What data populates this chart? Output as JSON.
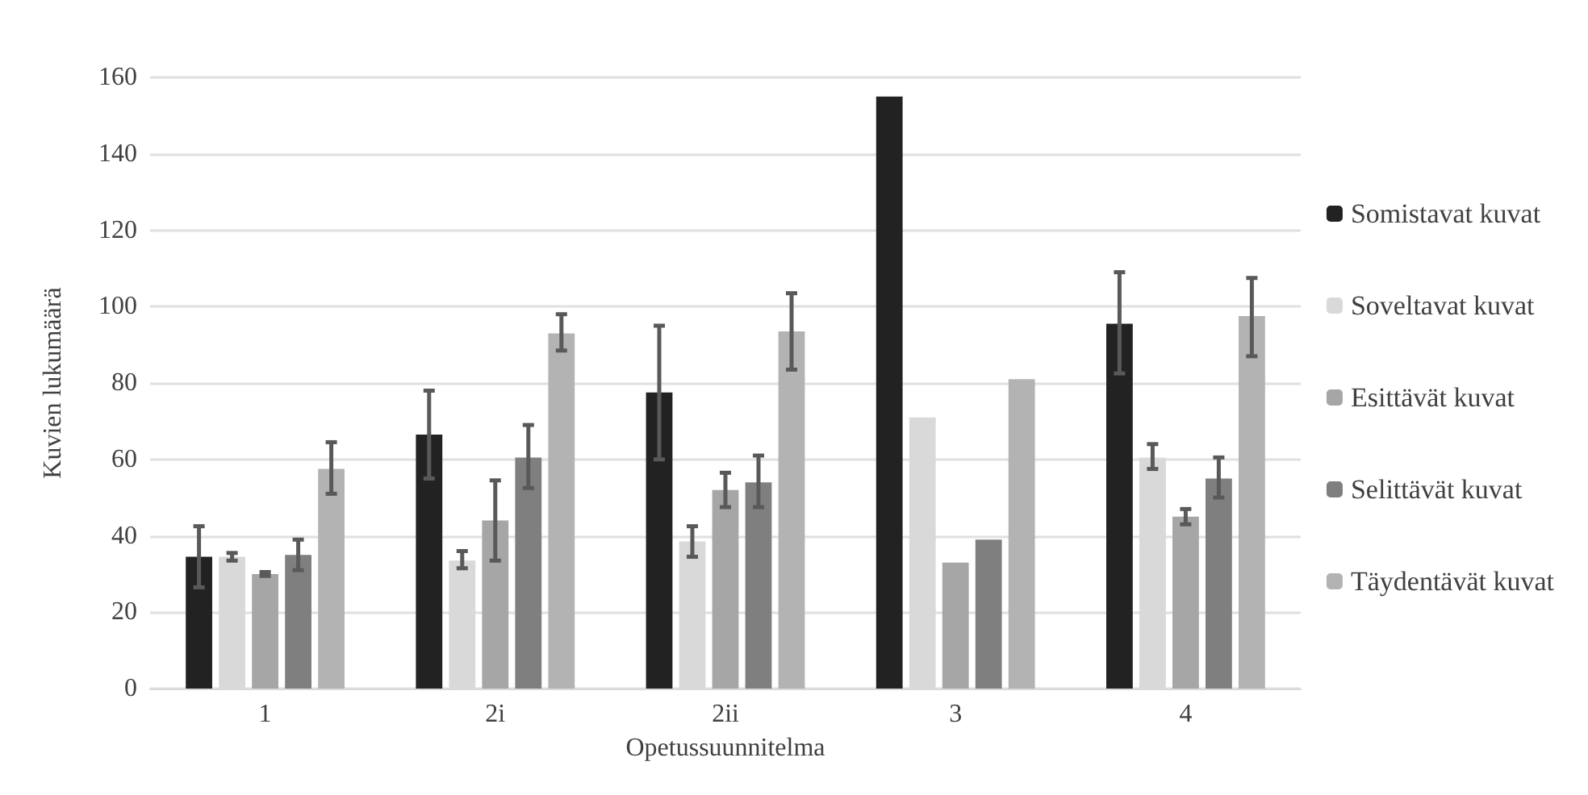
{
  "chart_data": {
    "type": "bar",
    "xlabel": "Opetussuunnitelma",
    "ylabel": "Kuvien lukumäärä",
    "categories": [
      "1",
      "2i",
      "2ii",
      "3",
      "4"
    ],
    "series": [
      {
        "name": "Somistavat kuvat",
        "color": "#222222",
        "values": [
          34.5,
          66.5,
          77.5,
          155,
          95.5
        ],
        "errors": [
          [
            26.5,
            42.5
          ],
          [
            55,
            78
          ],
          [
            60,
            95
          ],
          null,
          [
            82.5,
            109
          ]
        ]
      },
      {
        "name": "Soveltavat kuvat",
        "color": "#d9d9d9",
        "values": [
          34.5,
          33.5,
          38.5,
          71,
          60.5
        ],
        "errors": [
          [
            33.5,
            35.5
          ],
          [
            31.5,
            36
          ],
          [
            34.5,
            42.5
          ],
          null,
          [
            57.5,
            64
          ]
        ]
      },
      {
        "name": "Esittävät kuvat",
        "color": "#a6a6a6",
        "values": [
          30,
          44,
          52,
          33,
          45
        ],
        "errors": [
          [
            29.5,
            30.5
          ],
          [
            33.5,
            54.5
          ],
          [
            47.5,
            56.5
          ],
          null,
          [
            43,
            47
          ]
        ]
      },
      {
        "name": "Selittävät kuvat",
        "color": "#7f7f7f",
        "values": [
          35,
          60.5,
          54,
          39,
          55
        ],
        "errors": [
          [
            31,
            39
          ],
          [
            52.5,
            69
          ],
          [
            47.5,
            61
          ],
          null,
          [
            50,
            60.5
          ]
        ]
      },
      {
        "name": "Täydentävät kuvat",
        "color": "#b3b3b3",
        "values": [
          57.5,
          93,
          93.5,
          81,
          97.5
        ],
        "errors": [
          [
            51,
            64.5
          ],
          [
            88.5,
            98
          ],
          [
            83.5,
            103.5
          ],
          null,
          [
            87,
            107.5
          ]
        ]
      }
    ],
    "ylim": [
      0,
      160
    ],
    "yticks": [
      0,
      20,
      40,
      60,
      80,
      100,
      120,
      140,
      160
    ],
    "grid": "y",
    "legend": "right"
  }
}
